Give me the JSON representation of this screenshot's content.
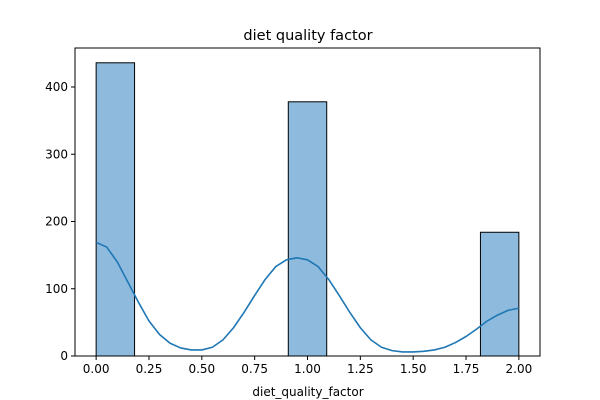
{
  "chart_data": {
    "type": "histogram",
    "title": "diet quality factor",
    "xlabel": "diet_quality_factor",
    "ylabel": "",
    "xlim": [
      -0.1,
      2.1
    ],
    "ylim": [
      0,
      458
    ],
    "x_ticks": [
      0.0,
      0.25,
      0.5,
      0.75,
      1.0,
      1.25,
      1.5,
      1.75,
      2.0
    ],
    "x_tick_labels": [
      "0.00",
      "0.25",
      "0.50",
      "0.75",
      "1.00",
      "1.25",
      "1.50",
      "1.75",
      "2.00"
    ],
    "y_ticks": [
      0,
      100,
      200,
      300,
      400
    ],
    "y_tick_labels": [
      "0",
      "100",
      "200",
      "300",
      "400"
    ],
    "bars": [
      {
        "x_start": 0.0,
        "x_end": 0.1818,
        "count": 436
      },
      {
        "x_start": 0.9091,
        "x_end": 1.0909,
        "count": 378
      },
      {
        "x_start": 1.8182,
        "x_end": 2.0,
        "count": 184
      }
    ],
    "kde_curve": {
      "x": [
        0.0,
        0.05,
        0.1,
        0.15,
        0.2,
        0.25,
        0.3,
        0.35,
        0.4,
        0.45,
        0.5,
        0.55,
        0.6,
        0.65,
        0.7,
        0.75,
        0.8,
        0.85,
        0.9,
        0.95,
        1.0,
        1.05,
        1.1,
        1.15,
        1.2,
        1.25,
        1.3,
        1.35,
        1.4,
        1.45,
        1.5,
        1.55,
        1.6,
        1.65,
        1.7,
        1.75,
        1.8,
        1.85,
        1.9,
        1.95,
        2.0
      ],
      "y": [
        169,
        162,
        140,
        110,
        80,
        52,
        32,
        19,
        12,
        9,
        9,
        13,
        24,
        42,
        65,
        90,
        114,
        133,
        143,
        146,
        143,
        133,
        114,
        90,
        65,
        42,
        24,
        13,
        8,
        6,
        6,
        7,
        9,
        13,
        20,
        29,
        40,
        52,
        61,
        68,
        71
      ]
    },
    "bar_fill": "#8ebbdd",
    "bar_edge": "#000000",
    "line_color": "#1f77b4",
    "grid": false,
    "legend": "none"
  }
}
